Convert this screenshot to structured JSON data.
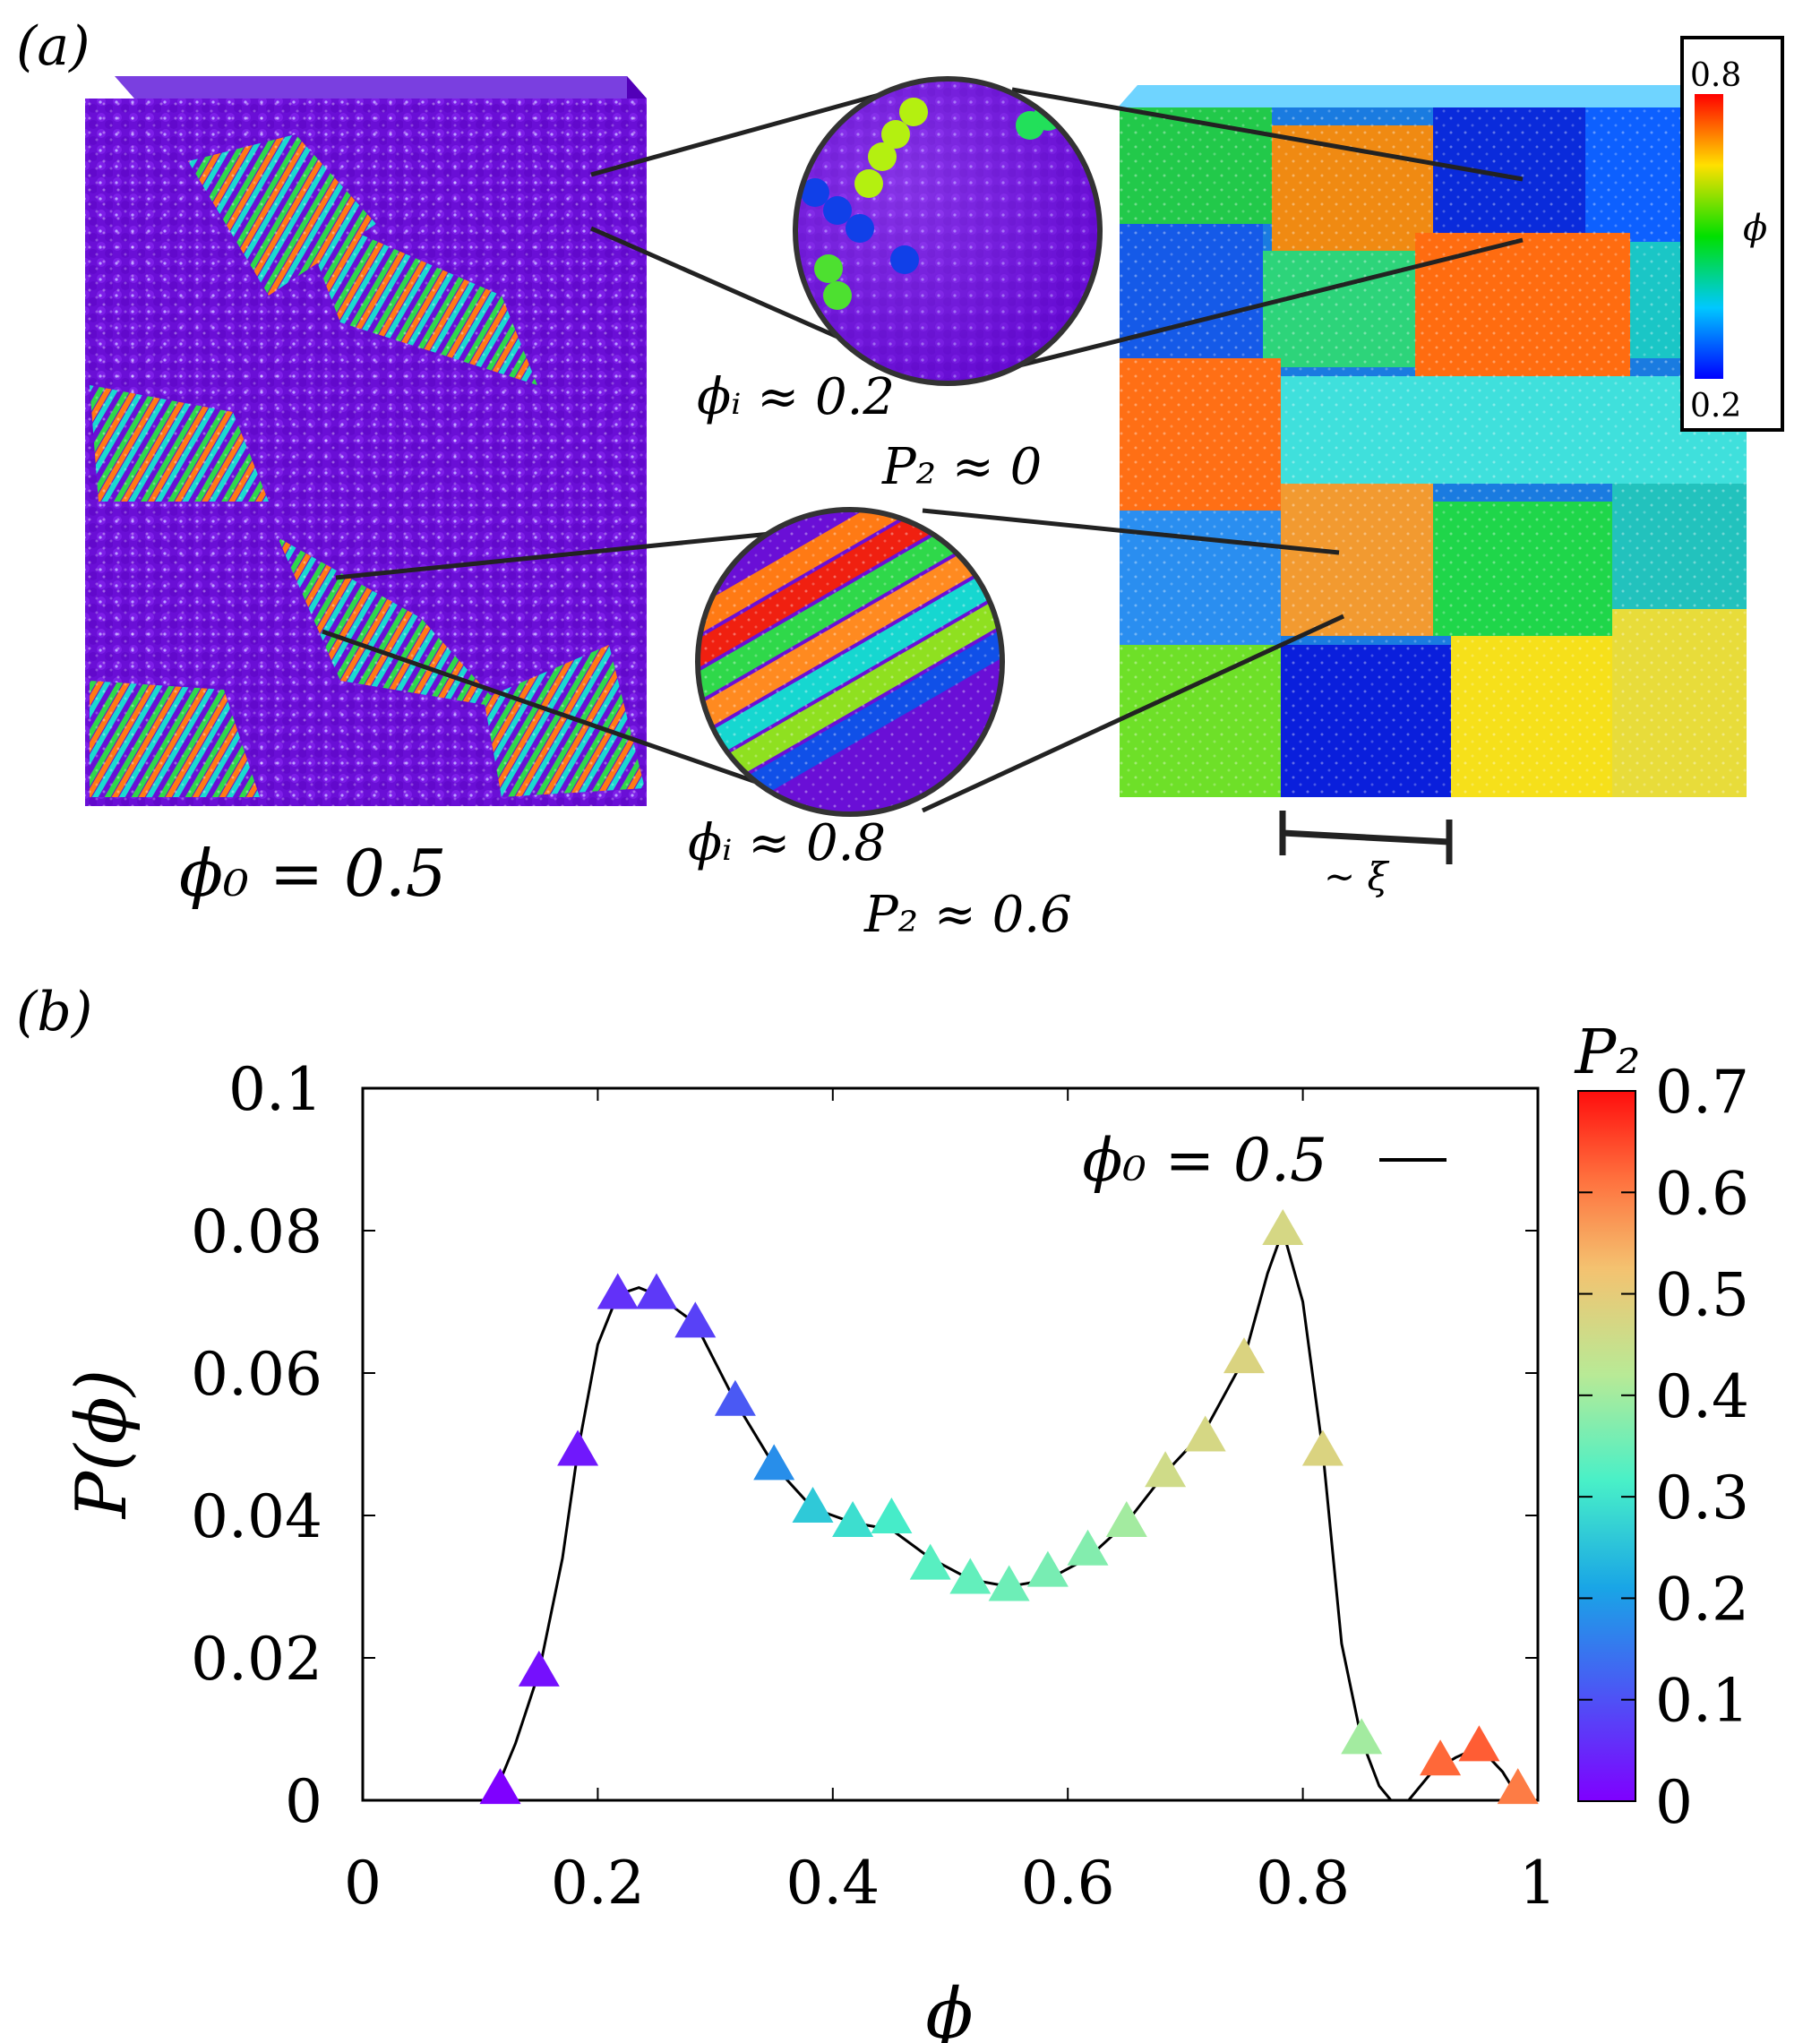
{
  "panel_a": {
    "label": "(a)",
    "phi0_label": "ϕ₀ = 0.5",
    "zoom_top": {
      "phi": "ϕᵢ ≈ 0.2",
      "p2": "P₂ ≈ 0"
    },
    "zoom_bottom": {
      "phi": "ϕᵢ ≈ 0.8",
      "p2": "P₂ ≈ 0.6"
    },
    "scale_label": "~ ξ",
    "colorbar": {
      "max": "0.8",
      "min": "0.2",
      "label": "ϕ"
    }
  },
  "chart_data": {
    "type": "scatter",
    "panel_label": "(b)",
    "xlabel": "ϕ",
    "ylabel": "P(ϕ)",
    "xlim": [
      0,
      1
    ],
    "ylim": [
      0,
      0.1
    ],
    "xticks": [
      "0",
      "0.2",
      "0.4",
      "0.6",
      "0.8",
      "1"
    ],
    "yticks": [
      "0",
      "0.02",
      "0.04",
      "0.06",
      "0.08",
      "0.1"
    ],
    "legend": {
      "label": "ϕ₀ = 0.5",
      "position": "top-right"
    },
    "colorbar": {
      "title": "P₂",
      "range": [
        0,
        0.7
      ],
      "ticks": [
        "0",
        "0.1",
        "0.2",
        "0.3",
        "0.4",
        "0.5",
        "0.6",
        "0.7"
      ]
    },
    "series": [
      {
        "name": "ϕ₀ = 0.5",
        "x": [
          0.117,
          0.15,
          0.183,
          0.217,
          0.25,
          0.283,
          0.317,
          0.35,
          0.383,
          0.417,
          0.45,
          0.483,
          0.517,
          0.55,
          0.583,
          0.617,
          0.65,
          0.683,
          0.717,
          0.75,
          0.783,
          0.817,
          0.85,
          0.917,
          0.95,
          0.983
        ],
        "y": [
          0.0015,
          0.018,
          0.049,
          0.071,
          0.071,
          0.067,
          0.056,
          0.047,
          0.041,
          0.039,
          0.0395,
          0.033,
          0.031,
          0.03,
          0.032,
          0.035,
          0.039,
          0.046,
          0.051,
          0.062,
          0.08,
          0.049,
          0.0085,
          0.0055,
          0.0075,
          0.0015
        ],
        "p2": [
          0.0,
          0.02,
          0.03,
          0.06,
          0.07,
          0.08,
          0.11,
          0.18,
          0.26,
          0.29,
          0.31,
          0.33,
          0.34,
          0.35,
          0.36,
          0.37,
          0.4,
          0.46,
          0.47,
          0.48,
          0.47,
          0.48,
          0.4,
          0.62,
          0.63,
          0.6
        ]
      }
    ],
    "curve": {
      "x": [
        0.0,
        0.05,
        0.09,
        0.11,
        0.13,
        0.15,
        0.17,
        0.183,
        0.2,
        0.217,
        0.235,
        0.25,
        0.283,
        0.317,
        0.35,
        0.383,
        0.417,
        0.45,
        0.483,
        0.517,
        0.55,
        0.583,
        0.617,
        0.65,
        0.683,
        0.717,
        0.75,
        0.77,
        0.783,
        0.8,
        0.817,
        0.833,
        0.85,
        0.865,
        0.875,
        0.89,
        0.91,
        0.93,
        0.95,
        0.97,
        0.985
      ],
      "y": [
        0.0,
        0.0,
        0.0,
        0.0,
        0.008,
        0.018,
        0.034,
        0.049,
        0.064,
        0.071,
        0.072,
        0.071,
        0.067,
        0.056,
        0.047,
        0.041,
        0.039,
        0.038,
        0.034,
        0.031,
        0.03,
        0.031,
        0.034,
        0.039,
        0.046,
        0.052,
        0.062,
        0.074,
        0.08,
        0.07,
        0.049,
        0.022,
        0.0085,
        0.002,
        0.0,
        0.0,
        0.004,
        0.006,
        0.0075,
        0.004,
        0.0
      ]
    }
  }
}
